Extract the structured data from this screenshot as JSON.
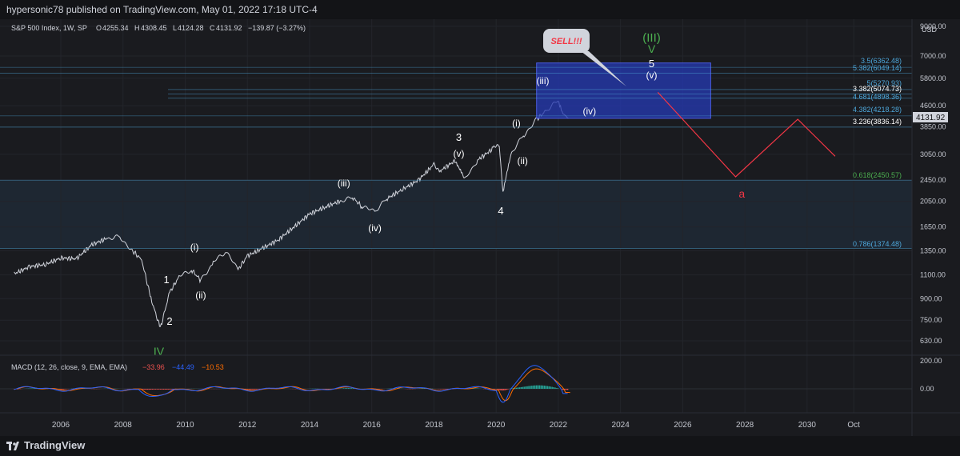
{
  "header": {
    "publisher": "hypersonic78 published on TradingView.com, May 01, 2022 17:18 UTC-4"
  },
  "symbol": {
    "name": "S&P 500 Index, 1W, SP",
    "o_label": "O",
    "o": "4255.34",
    "h_label": "H",
    "h": "4308.45",
    "l_label": "L",
    "l": "4124.28",
    "c_label": "C",
    "c": "4131.92",
    "change": "−139.87 (−3.27%)"
  },
  "currency": "USD",
  "current_price": "4131.92",
  "macd": {
    "label": "MACD (12, 26, close, 9, EMA, EMA)",
    "v1": "−33.96",
    "v2": "−44.49",
    "v3": "−10.53",
    "y_ticks": [
      "200.00",
      "0.00"
    ]
  },
  "colors": {
    "bg": "#1a1b1f",
    "up": "#d1d4dc",
    "macd": "#2962ff",
    "signal": "#ff6d00",
    "fib": "#4da6d9",
    "red": "#f23645",
    "green": "#4caf50",
    "box": "#2539b0"
  },
  "brand": "TradingView",
  "chart_data": {
    "type": "line",
    "title": "S&P 500 Index, 1W, SP",
    "ylabel": "USD",
    "y_scale": "log",
    "x_tick_labels": [
      "2006",
      "2008",
      "2010",
      "2012",
      "2014",
      "2016",
      "2018",
      "2020",
      "2022",
      "2024",
      "2026",
      "2028",
      "2030",
      "Oct"
    ],
    "y_tick_labels": [
      "9000.00",
      "7000.00",
      "5800.00",
      "4600.00",
      "3850.00",
      "3050.00",
      "2450.00",
      "2050.00",
      "1650.00",
      "1350.00",
      "1100.00",
      "900.00",
      "750.00",
      "630.00"
    ],
    "series": [
      {
        "x": [
          2004.5,
          2005.0,
          2005.5,
          2006.0,
          2006.5,
          2007.0,
          2007.5,
          2007.9,
          2008.3,
          2008.6,
          2008.9,
          2009.2,
          2009.5,
          2009.8,
          2010.2,
          2010.5,
          2010.9,
          2011.3,
          2011.7,
          2012.0,
          2012.5,
          2013.0,
          2013.5,
          2014.0,
          2014.5,
          2015.0,
          2015.4,
          2015.7,
          2016.1,
          2016.5,
          2017.0,
          2017.5,
          2018.0,
          2018.2,
          2018.7,
          2018.98,
          2019.4,
          2019.9,
          2020.1,
          2020.22,
          2020.5,
          2020.9,
          2021.3,
          2021.6,
          2021.99,
          2022.15,
          2022.33
        ],
        "y": [
          1110,
          1180,
          1200,
          1270,
          1260,
          1420,
          1500,
          1520,
          1350,
          1250,
          900,
          700,
          950,
          1080,
          1150,
          1050,
          1220,
          1340,
          1150,
          1290,
          1380,
          1480,
          1650,
          1840,
          1950,
          2060,
          2110,
          1950,
          1880,
          2100,
          2270,
          2450,
          2800,
          2650,
          2900,
          2450,
          2900,
          3200,
          3300,
          2230,
          3100,
          3600,
          4100,
          4400,
          4790,
          4300,
          4131.92
        ]
      }
    ],
    "fib_levels": [
      {
        "ratio": "3.5",
        "value": "6362.48"
      },
      {
        "ratio": "5.382",
        "value": "6049.14"
      },
      {
        "ratio": "5",
        "value": "5270.93"
      },
      {
        "ratio": "3.382",
        "value": "5074.73"
      },
      {
        "ratio": "4.681",
        "value": "4898.36"
      },
      {
        "ratio": "4.382",
        "value": "4218.28"
      },
      {
        "ratio": "3.236",
        "value": "3836.14"
      },
      {
        "ratio": "0.618",
        "value": "2450.57"
      },
      {
        "ratio": "0.786",
        "value": "1374.48"
      }
    ],
    "wave_labels": [
      "IV",
      "1",
      "2",
      "(i)",
      "(ii)",
      "(iii)",
      "(iv)",
      "3",
      "(v)",
      "4",
      "(i)",
      "(ii)",
      "(iii)",
      "(iv)",
      "5",
      "(v)",
      "V",
      "(III)",
      "a"
    ],
    "annotation": "SELL!!!",
    "sell_zone": {
      "x_range": [
        2021.3,
        2026.9
      ],
      "y_range": [
        4131.92,
        6600
      ]
    },
    "red_path": {
      "x": [
        2025.2,
        2027.7,
        2029.7,
        2030.9
      ],
      "y": [
        5150,
        2520,
        4100,
        3000
      ]
    }
  }
}
